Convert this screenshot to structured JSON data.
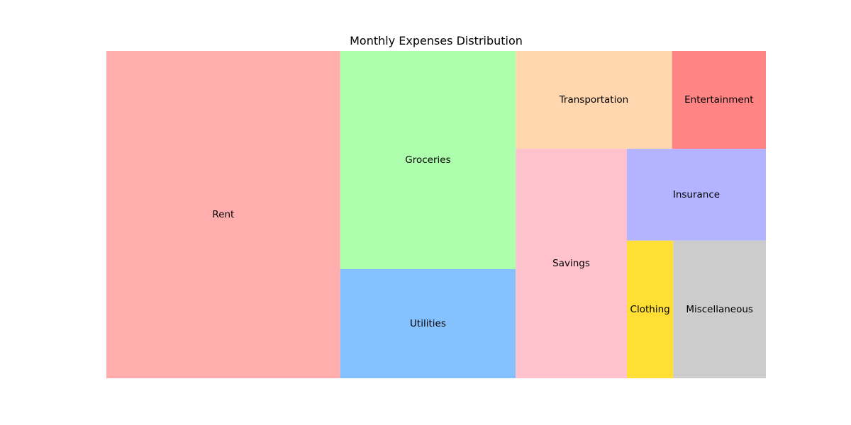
{
  "chart_data": {
    "type": "treemap",
    "title": "Monthly Expenses Distribution",
    "categories": [
      "Rent",
      "Groceries",
      "Utilities",
      "Transportation",
      "Entertainment",
      "Savings",
      "Insurance",
      "Clothing",
      "Miscellaneous"
    ],
    "values": [
      1500,
      750,
      375,
      300,
      180,
      500,
      250,
      125,
      250
    ],
    "colors": [
      "#ffadad",
      "#adffad",
      "#85c1ff",
      "#ffd6ad",
      "#ff8585",
      "#ffc1cc",
      "#b3b3ff",
      "#ffdf33",
      "#cccccc"
    ]
  }
}
